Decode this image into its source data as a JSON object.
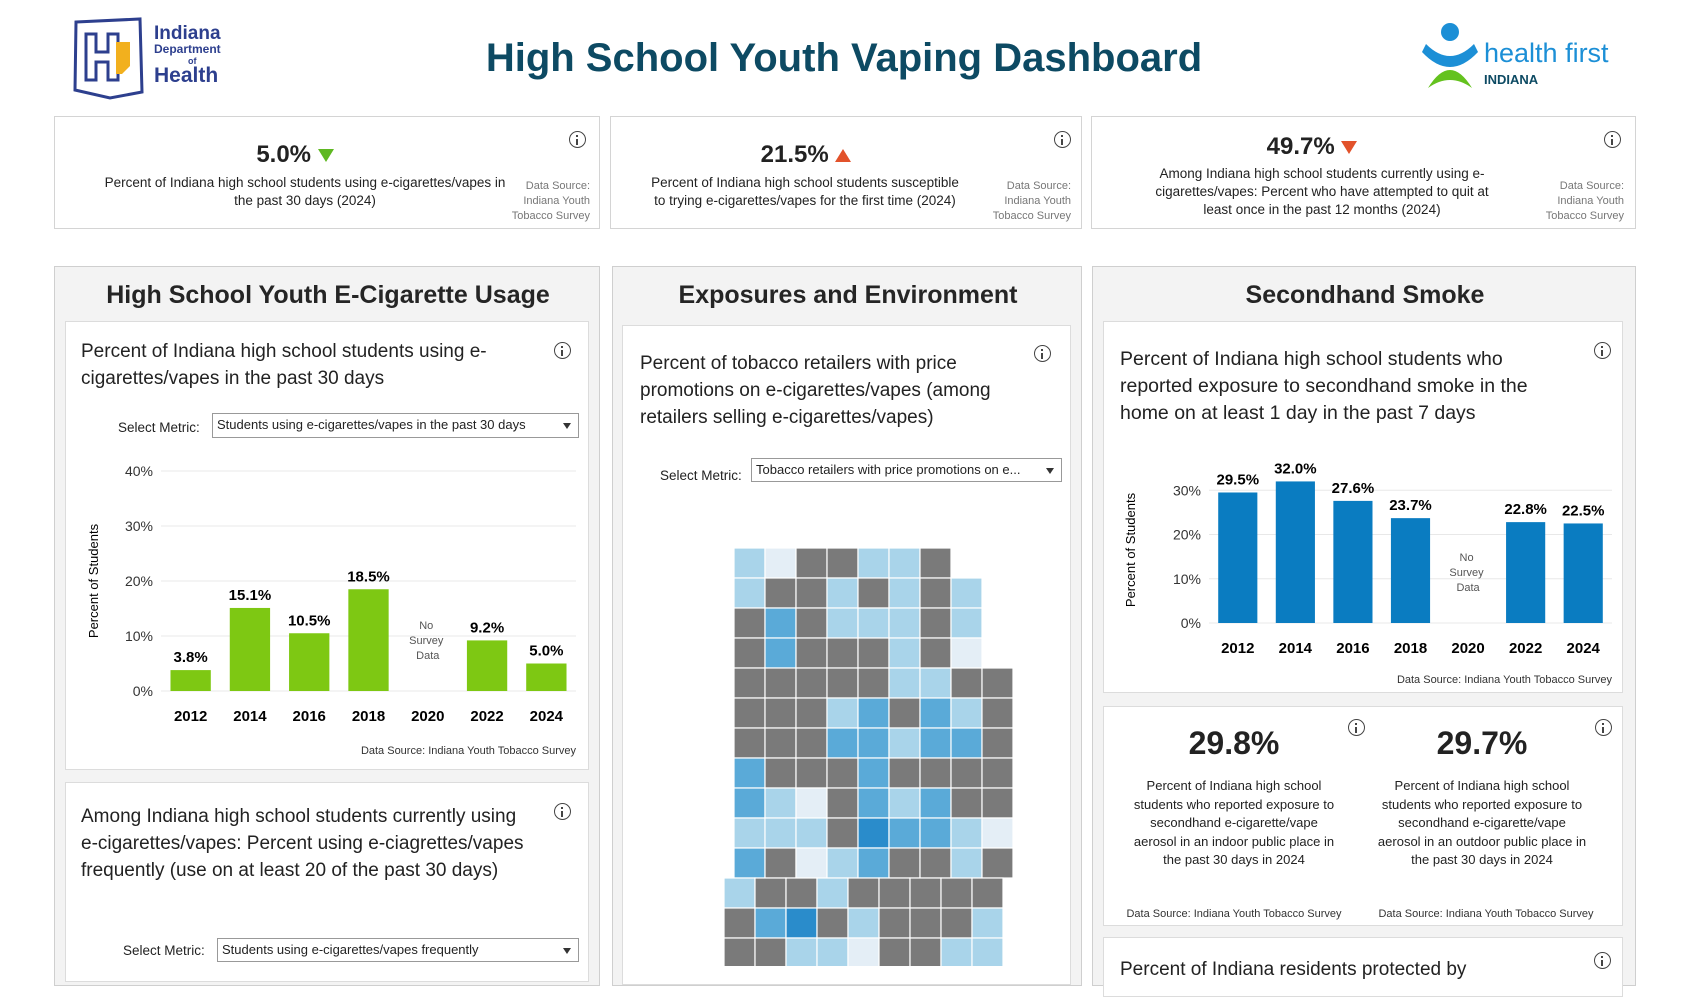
{
  "header": {
    "title": "High School Youth Vaping Dashboard",
    "left_logo": {
      "line1": "Indiana",
      "line2": "Department",
      "line3": "of",
      "line4": "Health"
    },
    "right_logo": {
      "name": "health first",
      "region": "INDIANA"
    }
  },
  "kpis": [
    {
      "value": "5.0%",
      "trend": "down",
      "trend_color": "#5fb822",
      "text": "Percent of Indiana high school students using e-cigarettes/vapes in the past 30 days (2024)",
      "source": "Data Source: Indiana Youth Tobacco Survey"
    },
    {
      "value": "21.5%",
      "trend": "up",
      "trend_color": "#e2522b",
      "text": "Percent of Indiana high school students susceptible to trying e-cigarettes/vapes for the first time (2024)",
      "source": "Data Source: Indiana Youth Tobacco Survey"
    },
    {
      "value": "49.7%",
      "trend": "down",
      "trend_color": "#e2522b",
      "text": "Among Indiana high school students currently using e-cigarettes/vapes: Percent who have attempted to quit at least once in the past 12 months (2024)",
      "source": "Data Source: Indiana Youth Tobacco Survey"
    }
  ],
  "sections": [
    {
      "title": "High School Youth E-Cigarette Usage"
    },
    {
      "title": "Exposures and Environment"
    },
    {
      "title": "Secondhand Smoke"
    }
  ],
  "usage_chart": {
    "type": "bar",
    "title": "Percent of Indiana high school students using e-cigarettes/vapes in the past 30 days",
    "select_label": "Select Metric:",
    "select_value": "Students using e-cigarettes/vapes in the past 30 days",
    "y_label": "Percent of Students",
    "categories": [
      "2012",
      "2014",
      "2016",
      "2018",
      "2020",
      "2022",
      "2024"
    ],
    "values": [
      3.8,
      15.1,
      10.5,
      18.5,
      null,
      9.2,
      5.0
    ],
    "value_labels": [
      "3.8%",
      "15.1%",
      "10.5%",
      "18.5%",
      null,
      "9.2%",
      "5.0%"
    ],
    "missing_label": "No Survey Data",
    "color": "#7ec813",
    "ylim": [
      0,
      40
    ],
    "yticks": [
      {
        "value": 0,
        "label": "0%"
      },
      {
        "value": 10,
        "label": "10%"
      },
      {
        "value": 20,
        "label": "20%"
      },
      {
        "value": 30,
        "label": "30%"
      },
      {
        "value": 40,
        "label": "40%"
      }
    ],
    "grid": true,
    "source": "Data Source: Indiana Youth Tobacco Survey"
  },
  "frequent_card": {
    "title": "Among Indiana high school students currently using e-cigarettes/vapes: Percent using e-ciagrettes/vapes frequently (use on at least 20 of the past 30 days)",
    "select_label": "Select Metric:",
    "select_value": "Students using e-cigarettes/vapes frequently"
  },
  "retail_card": {
    "title": "Percent of tobacco retailers with price promotions on e-cigarettes/vapes (among retailers selling e-cigarettes/vapes)",
    "select_label": "Select Metric:",
    "select_value": "Tobacco retailers with price promotions on e..."
  },
  "secondhand_chart": {
    "type": "bar",
    "title": "Percent of Indiana high school students who reported exposure to secondhand smoke in the home on at least 1 day in the past 7 days",
    "y_label": "Percent of Students",
    "categories": [
      "2012",
      "2014",
      "2016",
      "2018",
      "2020",
      "2022",
      "2024"
    ],
    "values": [
      29.5,
      32.0,
      27.6,
      23.7,
      null,
      22.8,
      22.5
    ],
    "value_labels": [
      "29.5%",
      "32.0%",
      "27.6%",
      "23.7%",
      null,
      "22.8%",
      "22.5%"
    ],
    "missing_label": "No Survey Data",
    "color": "#0a7cc1",
    "ylim": [
      0,
      33
    ],
    "yticks": [
      {
        "value": 0,
        "label": "0%"
      },
      {
        "value": 10,
        "label": "10%"
      },
      {
        "value": 20,
        "label": "20%"
      },
      {
        "value": 30,
        "label": "30%"
      }
    ],
    "grid": true,
    "source": "Data Source: Indiana Youth Tobacco Survey"
  },
  "aerosol_stats": [
    {
      "value": "29.8%",
      "text": "Percent of Indiana high school students who reported exposure to secondhand e-cigarette/vape aerosol in an indoor public place in the past 30 days in 2024",
      "source": "Data Source: Indiana Youth Tobacco Survey"
    },
    {
      "value": "29.7%",
      "text": "Percent of Indiana high school students who reported exposure to secondhand e-cigarette/vape aerosol in an outdoor public place in the past 30 days in 2024",
      "source": "Data Source: Indiana Youth Tobacco Survey"
    }
  ],
  "protection_card": {
    "title": "Percent of Indiana residents protected by"
  }
}
